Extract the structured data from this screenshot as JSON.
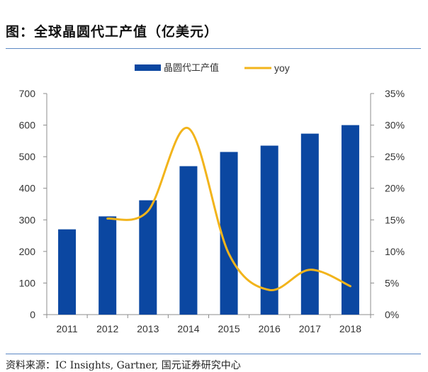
{
  "title": "图：全球晶圆代工产值（亿美元）",
  "source": "资料来源：IC Insights, Gartner, 国元证券研究中心",
  "colors": {
    "bar": "#0b47a1",
    "line": "#f2b41b",
    "axis": "#8c8c8c",
    "rule": "#5b88c4"
  },
  "chart_data": {
    "type": "bar",
    "title": "全球晶圆代工产值（亿美元）",
    "categories": [
      "2011",
      "2012",
      "2013",
      "2014",
      "2015",
      "2016",
      "2017",
      "2018"
    ],
    "series": [
      {
        "name": "晶圆代工产值",
        "type": "bar",
        "axis": "left",
        "values": [
          270,
          311,
          362,
          470,
          515,
          535,
          573,
          600
        ]
      },
      {
        "name": "yoy",
        "type": "line",
        "axis": "right",
        "values": [
          null,
          15.2,
          16.4,
          29.5,
          9.6,
          3.9,
          7.1,
          4.5
        ]
      }
    ],
    "y_left": {
      "ylim": [
        0,
        700
      ],
      "ticks": [
        "0",
        "100",
        "200",
        "300",
        "400",
        "500",
        "600",
        "700"
      ]
    },
    "y_right": {
      "ylim": [
        0,
        35
      ],
      "ticks": [
        "0%",
        "5%",
        "10%",
        "15%",
        "20%",
        "25%",
        "30%",
        "35%"
      ]
    },
    "legend": {
      "position": "top",
      "entries": [
        "晶圆代工产值",
        "yoy"
      ]
    },
    "grid": false
  }
}
